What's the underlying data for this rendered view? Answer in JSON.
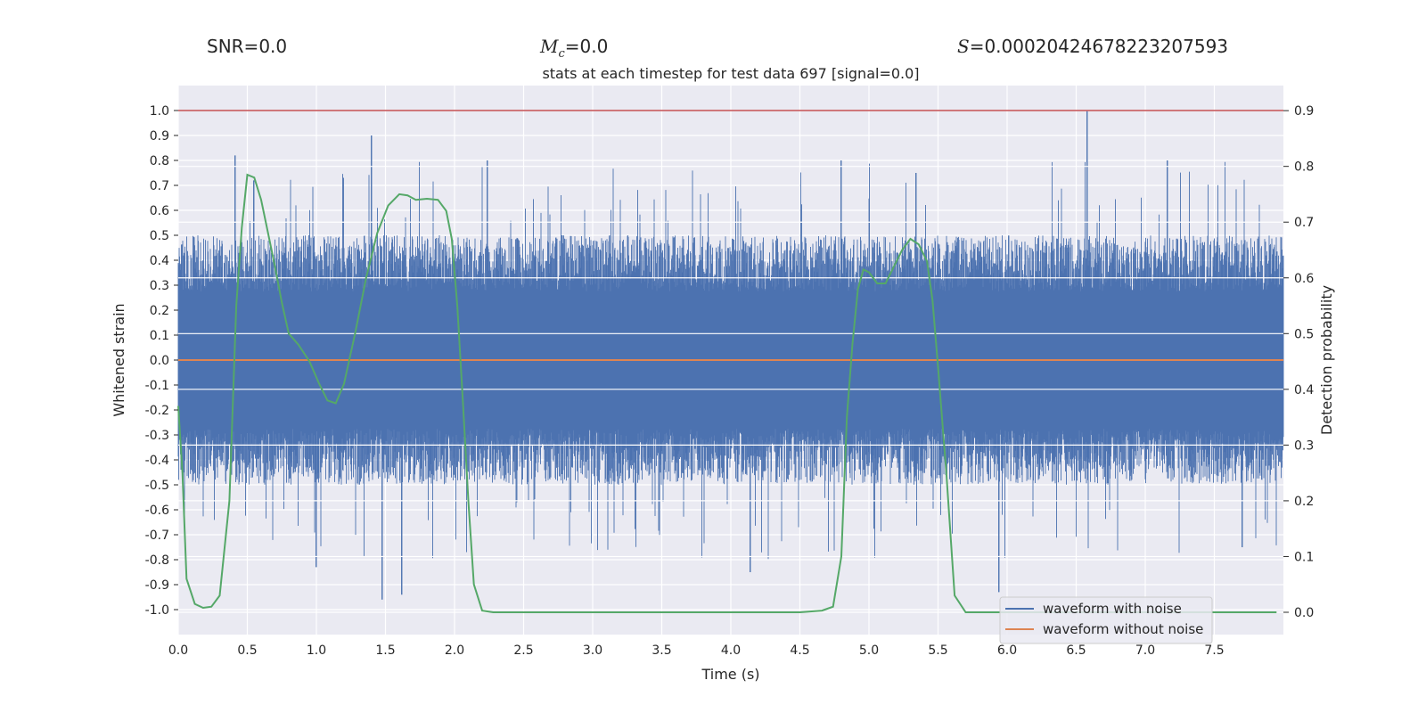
{
  "header": {
    "snr_label": "SNR=",
    "snr_value": "0.0",
    "mc_symbol": "M",
    "mc_sub": "c",
    "mc_value": "=0.0",
    "s_symbol": "S",
    "s_value": "=0.0002042467822320759​3"
  },
  "chart_data": {
    "type": "line",
    "title": "stats at each timestep for test data 697 [signal=0.0]",
    "xlabel": "Time (s)",
    "ylabel": "Whitened strain",
    "y2label": "Detection probability",
    "xlim": [
      0,
      8
    ],
    "ylim": [
      -1.1,
      1.1
    ],
    "y2lim": [
      -0.04,
      0.945
    ],
    "xticks": [
      "0.0",
      "0.5",
      "1.0",
      "1.5",
      "2.0",
      "2.5",
      "3.0",
      "3.5",
      "4.0",
      "4.5",
      "5.0",
      "5.5",
      "6.0",
      "6.5",
      "7.0",
      "7.5"
    ],
    "yticks": [
      "1.0",
      "0.9",
      "0.8",
      "0.7",
      "0.6",
      "0.5",
      "0.4",
      "0.3",
      "0.2",
      "0.1",
      "0.0",
      "-0.1",
      "-0.2",
      "-0.3",
      "-0.4",
      "-0.5",
      "-0.6",
      "-0.7",
      "-0.8",
      "-0.9",
      "-1.0"
    ],
    "y2ticks": [
      "0.9",
      "0.8",
      "0.7",
      "0.6",
      "0.5",
      "0.4",
      "0.3",
      "0.2",
      "0.1",
      "0.0"
    ],
    "threshold_y": 1.0,
    "threshold_color": "#c44e52",
    "series": [
      {
        "name": "waveform with noise",
        "color": "#4c72b0",
        "noise_envelope": 0.5,
        "noise_peaks": [
          [
            0.41,
            0.82
          ],
          [
            0.55,
            0.72
          ],
          [
            1.4,
            0.9
          ],
          [
            1.48,
            -0.96
          ],
          [
            1.62,
            -0.94
          ],
          [
            2.24,
            0.8
          ],
          [
            4.8,
            0.8
          ],
          [
            5.34,
            0.75
          ],
          [
            5.94,
            -0.93
          ],
          [
            6.58,
            1.0
          ],
          [
            7.16,
            0.8
          ],
          [
            4.14,
            -0.85
          ],
          [
            1.0,
            -0.83
          ],
          [
            7.7,
            -0.75
          ]
        ]
      },
      {
        "name": "waveform without noise",
        "color": "#dd8452",
        "constant": 0.0
      },
      {
        "name": "detection probability",
        "color": "#55a868",
        "axis": "right",
        "x": [
          0.0,
          0.03,
          0.06,
          0.12,
          0.18,
          0.24,
          0.3,
          0.37,
          0.42,
          0.46,
          0.5,
          0.55,
          0.6,
          0.65,
          0.7,
          0.75,
          0.8,
          0.87,
          0.95,
          1.02,
          1.08,
          1.14,
          1.2,
          1.28,
          1.36,
          1.44,
          1.52,
          1.6,
          1.66,
          1.72,
          1.8,
          1.88,
          1.94,
          1.98,
          2.02,
          2.06,
          2.1,
          2.14,
          2.2,
          2.28,
          2.5,
          3.0,
          3.5,
          4.0,
          4.5,
          4.66,
          4.74,
          4.8,
          4.84,
          4.88,
          4.92,
          4.96,
          5.0,
          5.06,
          5.12,
          5.18,
          5.24,
          5.3,
          5.36,
          5.42,
          5.46,
          5.5,
          5.56,
          5.62,
          5.7,
          6.0,
          6.5,
          7.0,
          7.5,
          7.95
        ],
        "y": [
          0.37,
          0.25,
          0.06,
          0.015,
          0.008,
          0.01,
          0.03,
          0.2,
          0.55,
          0.69,
          0.785,
          0.78,
          0.74,
          0.68,
          0.62,
          0.555,
          0.5,
          0.48,
          0.45,
          0.41,
          0.38,
          0.375,
          0.41,
          0.5,
          0.6,
          0.68,
          0.73,
          0.75,
          0.748,
          0.74,
          0.742,
          0.74,
          0.72,
          0.67,
          0.55,
          0.38,
          0.2,
          0.05,
          0.003,
          0.0,
          0.0,
          0.0,
          0.0,
          0.0,
          0.0,
          0.003,
          0.01,
          0.1,
          0.35,
          0.48,
          0.58,
          0.615,
          0.61,
          0.59,
          0.59,
          0.62,
          0.65,
          0.67,
          0.66,
          0.63,
          0.56,
          0.44,
          0.25,
          0.03,
          0.0,
          0.0,
          0.0,
          0.0,
          0.0,
          0.0
        ]
      }
    ],
    "legend": {
      "position": "lower-right",
      "entries": [
        "waveform with noise",
        "waveform without noise"
      ]
    },
    "grid": true,
    "background": "#eaeaf2"
  }
}
